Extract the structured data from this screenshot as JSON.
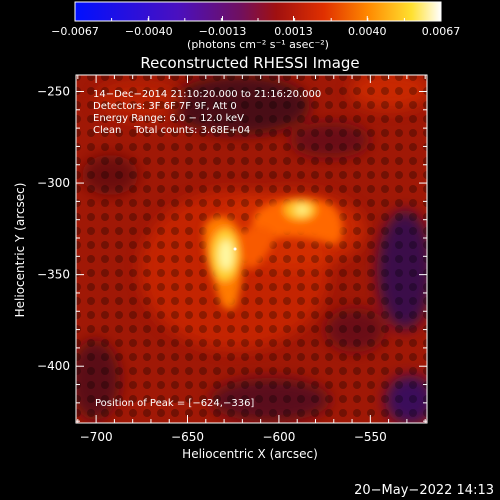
{
  "chart_data": {
    "type": "heatmap",
    "title": "Reconstructed RHESSI Image",
    "xlabel": "Heliocentric X (arcsec)",
    "ylabel": "Heliocentric Y (arcsec)",
    "xlim": [
      -711,
      -519
    ],
    "ylim": [
      -431,
      -241
    ],
    "x_ticks": [
      -700,
      -650,
      -600,
      -550
    ],
    "x_tick_labels": [
      "−700",
      "−650",
      "−600",
      "−550"
    ],
    "y_ticks": [
      -250,
      -300,
      -350,
      -400
    ],
    "y_tick_labels": [
      "−250",
      "−300",
      "−350",
      "−400"
    ],
    "colorbar": {
      "min": -0.0067,
      "max": 0.0067,
      "ticks": [
        -0.0067,
        -0.004,
        -0.0013,
        0.0013,
        0.004,
        0.0067
      ],
      "tick_labels": [
        "−0.0067",
        "−0.0040",
        "−0.0013",
        "0.0013",
        "0.0040",
        "0.0067"
      ],
      "unit_label": "(photons cm⁻² s⁻¹ asec⁻²)",
      "colors": [
        "#0010ff",
        "#4a10c0",
        "#6a1090",
        "#8a1040",
        "#c01000",
        "#ff4a00",
        "#ffb000",
        "#ffff60",
        "#ffffff"
      ]
    },
    "annotations": [
      "14−Dec−2014 21:10:20.000 to 21:16:20.000",
      "Detectors: 3F 6F 7F 9F, Att 0",
      "Energy Range: 6.0 − 12.0 keV",
      "Clean    Total counts: 3.68E+04"
    ],
    "peak_label": "Position of Peak = [−624,−336]",
    "peak": {
      "x": -624,
      "y": -336,
      "value": 0.0067
    },
    "sources": [
      {
        "x": -628,
        "y": -338,
        "value": 0.0067
      },
      {
        "x": -583,
        "y": -316,
        "value": 0.0052
      }
    ]
  },
  "timestamp": "20−May−2022 14:13"
}
